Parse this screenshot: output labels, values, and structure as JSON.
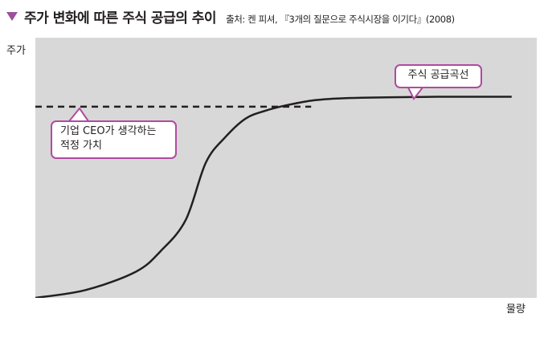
{
  "header": {
    "title": "주가 변화에 따른 주식 공급의 추이",
    "source": "출처: 켄 피셔, 『3개의 질문으로 주식시장을 이기다』(2008)"
  },
  "colors": {
    "accent": "#9c4f9b",
    "callout_border": "#b04aa0",
    "plot_background": "#d8d8d8",
    "line": "#231f20"
  },
  "chart_data": {
    "type": "line",
    "title": "주가 변화에 따른 주식 공급의 추이",
    "xlabel": "물량",
    "ylabel": "주가",
    "grid": false,
    "xlim": [
      0,
      100
    ],
    "ylim": [
      0,
      100
    ],
    "series": [
      {
        "name": "주식 공급곡선",
        "style": "solid",
        "x": [
          0,
          10,
          20,
          25,
          30,
          34,
          38,
          42,
          46,
          50,
          55,
          60,
          65,
          70,
          75,
          80,
          85,
          90,
          95
        ],
        "y": [
          0,
          3,
          10,
          18,
          30,
          52,
          62,
          69,
          72,
          74,
          75.8,
          76.6,
          76.9,
          77.1,
          77.2,
          77.3,
          77.3,
          77.3,
          77.3
        ]
      },
      {
        "name": "기업 CEO가 생각하는 적정 가치",
        "style": "dashed",
        "x": [
          0,
          55
        ],
        "y": [
          73.5,
          73.5
        ]
      }
    ],
    "annotations": [
      {
        "text": "주식 공급곡선"
      },
      {
        "lines": [
          "기업 CEO가 생각하는",
          "적정 가치"
        ]
      }
    ]
  }
}
